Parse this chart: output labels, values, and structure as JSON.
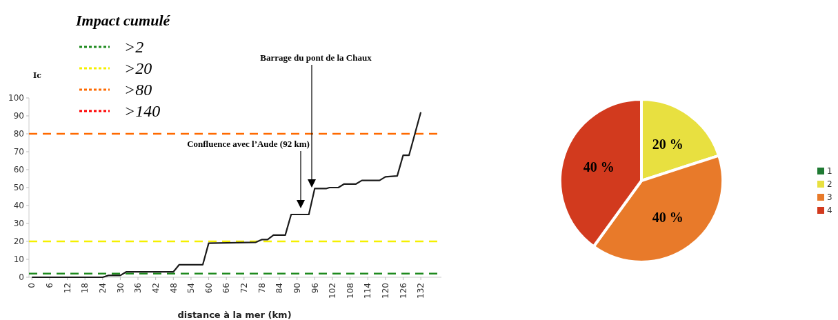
{
  "chart_data": [
    {
      "type": "line",
      "xlabel": "distance à la mer (km)",
      "ylabel": "Ic",
      "legend_title": "Impact cumulé",
      "xlim": [
        -1,
        139
      ],
      "xticks": [
        0,
        6,
        12,
        18,
        24,
        30,
        36,
        42,
        48,
        54,
        60,
        66,
        72,
        78,
        84,
        90,
        96,
        102,
        108,
        114,
        120,
        126,
        132
      ],
      "ylim": [
        0,
        100
      ],
      "yticks": [
        0,
        10,
        20,
        30,
        40,
        50,
        60,
        70,
        80,
        90,
        100
      ],
      "series": [
        {
          "color": "#1a1a1a",
          "x": [
            0,
            24,
            26,
            30,
            32,
            48,
            50,
            58,
            60,
            76,
            78,
            80,
            82,
            86,
            88,
            94,
            96,
            100,
            101,
            104,
            106,
            110,
            112,
            118,
            120,
            124,
            126,
            128,
            132
          ],
          "values": [
            0,
            0,
            1,
            1,
            3,
            3,
            7,
            7,
            19,
            19.5,
            21,
            21,
            23.5,
            23.5,
            35,
            35,
            49.5,
            49.5,
            50,
            50,
            52,
            52,
            54,
            54,
            56,
            56.5,
            68,
            68,
            92
          ]
        }
      ],
      "ref_lines": [
        {
          "axis": "y",
          "value": 2,
          "label": ">2",
          "color": "#1e8a1e",
          "line_style": "dashed"
        },
        {
          "axis": "y",
          "value": 20,
          "label": ">20",
          "color": "#f5f000",
          "line_style": "dashed"
        },
        {
          "axis": "y",
          "value": 80,
          "label": ">80",
          "color": "#ff6a00",
          "line_style": "dashed"
        }
      ],
      "annotations": [
        "Confluence avec l’Aude (92 km)",
        "Barrage du pont de la Chaux",
        ">140"
      ],
      "legend": "top left",
      "marker": "none",
      "line_style": "solid"
    },
    {
      "type": "pie",
      "categories": [
        "1",
        "2",
        "3",
        "4"
      ],
      "values": [
        0,
        20,
        40,
        40
      ],
      "colors": [
        "#1f7a33",
        "#e8e040",
        "#e87a2a",
        "#d23a1e"
      ],
      "value_labels": [
        null,
        "20 %",
        "40 %",
        "40 %"
      ],
      "legend": "right"
    }
  ]
}
